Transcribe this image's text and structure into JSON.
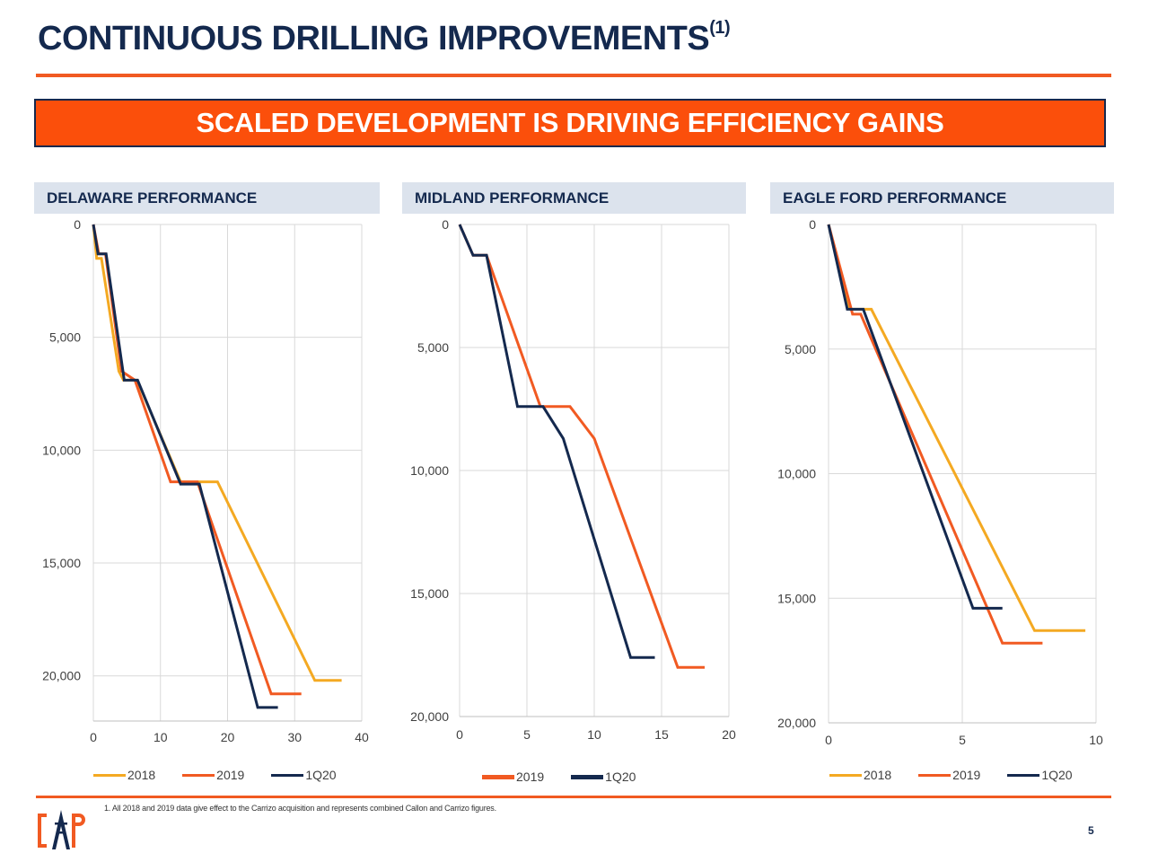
{
  "title": "CONTINUOUS DRILLING IMPROVEMENTS",
  "title_footnote_mark": "(1)",
  "banner": "SCALED DEVELOPMENT IS DRIVING EFFICIENCY GAINS",
  "colors": {
    "2018": "#f4a922",
    "2019": "#f15a22",
    "1Q20": "#14294e"
  },
  "footnote": "1. All 2018 and 2019 data give effect to the Carrizo acquisition and represents combined Callon and Carrizo figures.",
  "page_number": "5",
  "chart_data": [
    {
      "type": "line",
      "title": "DELAWARE  PERFORMANCE",
      "xlim": [
        0,
        40
      ],
      "ylim": [
        0,
        22000
      ],
      "y_inverted": true,
      "x_ticks": [
        0,
        10,
        20,
        30,
        40
      ],
      "x_tick_labels": [
        "0",
        "10",
        "20",
        "30",
        "40"
      ],
      "y_ticks": [
        0,
        5000,
        10000,
        15000,
        20000
      ],
      "y_tick_labels": [
        "0",
        "5,000",
        "10,000",
        "15,000",
        "20,000"
      ],
      "grid": true,
      "legend_position": "bottom",
      "series": [
        {
          "name": "2018",
          "x": [
            0,
            0.5,
            1.2,
            3.8,
            4.5,
            6.5,
            13,
            18.5,
            33,
            37
          ],
          "y": [
            0,
            1500,
            1500,
            6500,
            6900,
            6900,
            11400,
            11400,
            20200,
            20200
          ]
        },
        {
          "name": "2019",
          "x": [
            0,
            0.8,
            1.8,
            4.2,
            6.2,
            11.5,
            15.5,
            26.5,
            31
          ],
          "y": [
            0,
            1300,
            1300,
            6500,
            6900,
            11400,
            11400,
            20800,
            20800
          ]
        },
        {
          "name": "1Q20",
          "x": [
            0,
            0.7,
            1.9,
            4.6,
            6.6,
            13,
            15.8,
            24.5,
            27.5
          ],
          "y": [
            0,
            1300,
            1300,
            6900,
            6900,
            11500,
            11500,
            21400,
            21400
          ]
        }
      ]
    },
    {
      "type": "line",
      "title": "MIDLAND PERFORMANCE",
      "xlim": [
        0,
        20
      ],
      "ylim": [
        0,
        20000
      ],
      "y_inverted": true,
      "x_ticks": [
        0,
        5,
        10,
        15,
        20
      ],
      "x_tick_labels": [
        "0",
        "5",
        "10",
        "15",
        "20"
      ],
      "y_ticks": [
        0,
        5000,
        10000,
        15000,
        20000
      ],
      "y_tick_labels": [
        "0",
        "5,000",
        "10,000",
        "15,000",
        "20,000"
      ],
      "grid": true,
      "legend_position": "bottom",
      "series": [
        {
          "name": "2019",
          "x": [
            0,
            1,
            2,
            6,
            8.2,
            10,
            16.2,
            18.2
          ],
          "y": [
            0,
            1250,
            1250,
            7400,
            7400,
            8700,
            18000,
            18000
          ]
        },
        {
          "name": "1Q20",
          "x": [
            0,
            1,
            2,
            4.3,
            6.2,
            7.7,
            12.7,
            14.5
          ],
          "y": [
            0,
            1250,
            1250,
            7400,
            7400,
            8700,
            17600,
            17600
          ]
        }
      ]
    },
    {
      "type": "line",
      "title": "EAGLE FORD PERFORMANCE",
      "xlim": [
        0,
        10
      ],
      "ylim": [
        0,
        20000
      ],
      "y_inverted": true,
      "x_ticks": [
        0,
        5,
        10
      ],
      "x_tick_labels": [
        "0",
        "5",
        "10"
      ],
      "y_ticks": [
        0,
        5000,
        10000,
        15000,
        20000
      ],
      "y_tick_labels": [
        "0",
        "5,000",
        "10,000",
        "15,000",
        "20,000"
      ],
      "grid": true,
      "legend_position": "bottom",
      "series": [
        {
          "name": "2018",
          "x": [
            0,
            0.8,
            1.6,
            7.7,
            9.6
          ],
          "y": [
            0,
            3400,
            3400,
            16300,
            16300
          ]
        },
        {
          "name": "2019",
          "x": [
            0,
            0.9,
            1.2,
            6.5,
            8
          ],
          "y": [
            0,
            3600,
            3600,
            16800,
            16800
          ]
        },
        {
          "name": "1Q20",
          "x": [
            0,
            0.7,
            1.3,
            5.4,
            6.5
          ],
          "y": [
            0,
            3400,
            3400,
            15400,
            15400
          ]
        }
      ]
    }
  ]
}
